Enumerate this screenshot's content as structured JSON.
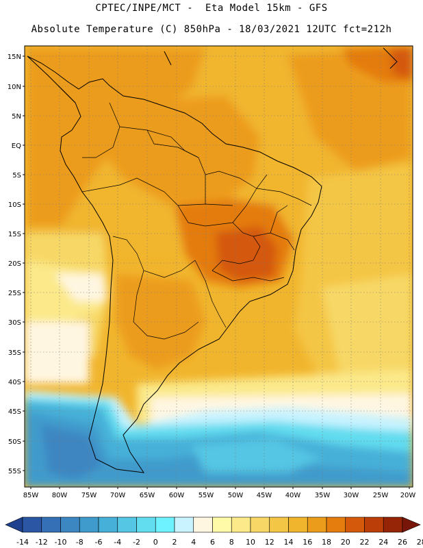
{
  "header": {
    "line1": "CPTEC/INPE/MCT -  Eta Model 15km - GFS",
    "line2": "Absolute Temperature (C) 850hPa - 18/03/2021 12UTC fct=212h"
  },
  "axes": {
    "latitudes": [
      "15N",
      "10N",
      "5N",
      "EQ",
      "5S",
      "10S",
      "15S",
      "20S",
      "25S",
      "30S",
      "35S",
      "40S",
      "45S",
      "50S",
      "55S"
    ],
    "longitudes": [
      "85W",
      "80W",
      "75W",
      "70W",
      "65W",
      "60W",
      "55W",
      "50W",
      "45W",
      "40W",
      "35W",
      "30W",
      "25W",
      "20W"
    ]
  },
  "colorbar": {
    "labels": [
      "-14",
      "-12",
      "-10",
      "-8",
      "-6",
      "-4",
      "-2",
      "0",
      "2",
      "4",
      "6",
      "8",
      "10",
      "12",
      "14",
      "16",
      "18",
      "20",
      "22",
      "24",
      "26",
      "28"
    ],
    "colors": [
      "#1f3f8f",
      "#2a56a3",
      "#3570b6",
      "#3c86c2",
      "#3f9bcc",
      "#46b0d8",
      "#55c6e4",
      "#62dcef",
      "#6ff2ff",
      "#c8f3ff",
      "#fff6e2",
      "#fffaa8",
      "#fbe98a",
      "#f7d866",
      "#f4c645",
      "#f1b52d",
      "#ec9c1b",
      "#e47c0e",
      "#d4590a",
      "#bb3d08",
      "#962507",
      "#781709"
    ]
  },
  "colors": {
    "background": "#ffffff",
    "land_outline": "#000000",
    "grid": "#7a7a7a"
  }
}
